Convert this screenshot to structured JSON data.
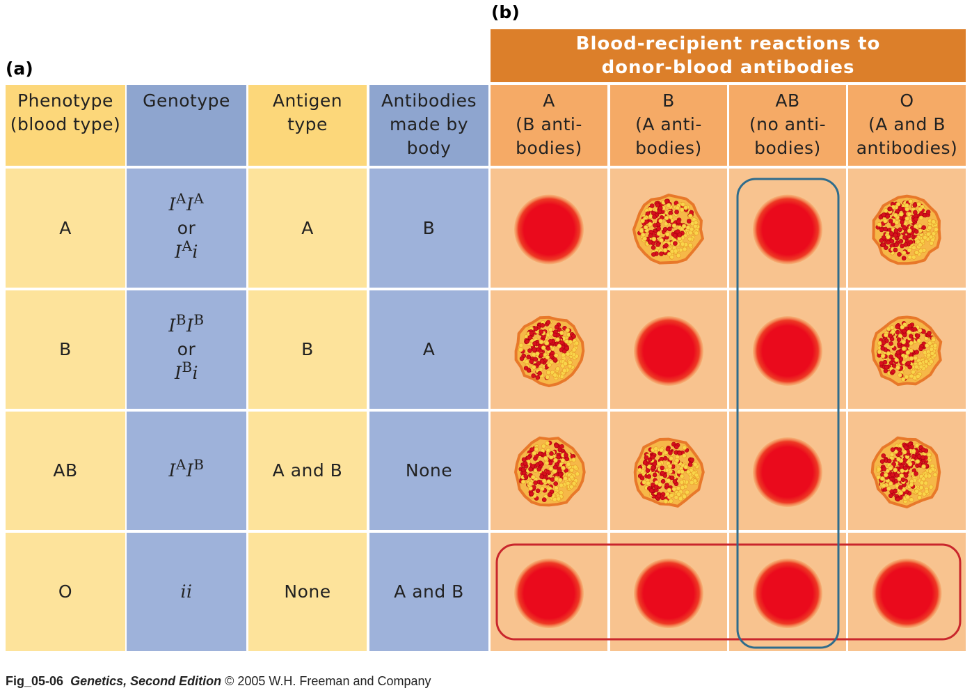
{
  "labels": {
    "a": "(a)",
    "b": "(b)"
  },
  "reactions_header": [
    "Blood-recipient reactions to",
    "donor-blood antibodies"
  ],
  "table": {
    "headers": [
      [
        "Phenotype",
        "(blood type)"
      ],
      [
        "Genotype"
      ],
      [
        "Antigen",
        "type"
      ],
      [
        "Antibodies",
        "made by",
        "body"
      ]
    ],
    "rows": [
      {
        "phenotype": "A",
        "genotype": [
          [
            {
              "base": "I",
              "sup": "A"
            },
            {
              "base": "I",
              "sup": "A"
            }
          ],
          "or",
          [
            {
              "base": "I",
              "sup": "A"
            },
            {
              "base": "i"
            }
          ]
        ],
        "antigen": "A",
        "antibodies": "B"
      },
      {
        "phenotype": "B",
        "genotype": [
          [
            {
              "base": "I",
              "sup": "B"
            },
            {
              "base": "I",
              "sup": "B"
            }
          ],
          "or",
          [
            {
              "base": "I",
              "sup": "B"
            },
            {
              "base": "i"
            }
          ]
        ],
        "antigen": "B",
        "antibodies": "A"
      },
      {
        "phenotype": "AB",
        "genotype": [
          [
            {
              "base": "I",
              "sup": "A"
            },
            {
              "base": "I",
              "sup": "B"
            }
          ]
        ],
        "antigen": "A and B",
        "antibodies": "None"
      },
      {
        "phenotype": "O",
        "genotype": [
          [
            {
              "base": "ii"
            }
          ]
        ],
        "antigen": "None",
        "antibodies": "A and B"
      }
    ]
  },
  "recipient_headers": [
    [
      "A",
      "(B anti-",
      "bodies)"
    ],
    [
      "B",
      "(A anti-",
      "bodies)"
    ],
    [
      "AB",
      "(no anti-",
      "bodies)"
    ],
    [
      "O",
      "(A and B",
      "antibodies)"
    ]
  ],
  "footer": {
    "figure": "Fig_05-06",
    "book": "Genetics, Second Edition",
    "rest": "© 2005 W.H. Freeman and Company"
  }
}
